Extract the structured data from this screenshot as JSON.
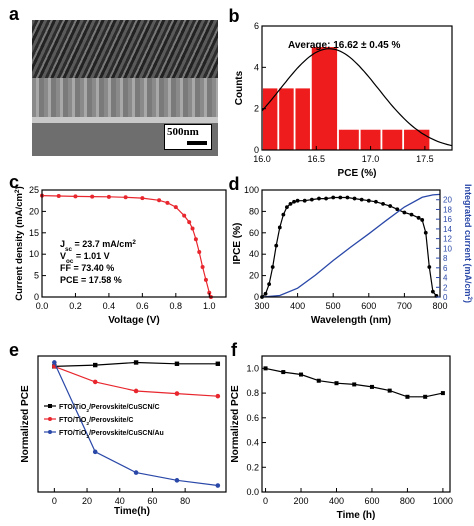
{
  "panel_labels": [
    "a",
    "b",
    "c",
    "d",
    "e",
    "f"
  ],
  "sem": {
    "scale_label": "500nm"
  },
  "chart_data": [
    {
      "panel": "b",
      "type": "bar",
      "bin_edges": [
        16.0,
        16.15,
        16.3,
        16.45,
        16.7,
        16.9,
        17.1,
        17.3,
        17.55
      ],
      "values": [
        3,
        3,
        3,
        5,
        1,
        1,
        1,
        1
      ],
      "fit": {
        "mu": 16.62,
        "sigma": 0.45,
        "peak": 4.9
      },
      "annotation": "Average:  16.62 ± 0.45 %",
      "xlabel": "PCE (%)",
      "ylabel": "Counts",
      "xlim": [
        16.0,
        17.75
      ],
      "ylim": [
        0,
        6
      ],
      "xticks": [
        "16.0",
        "16.5",
        "17.0",
        "17.5"
      ],
      "yticks": [
        "0",
        "2",
        "4",
        "6"
      ],
      "colors": {
        "bar": "#ee1c1c",
        "fit": "#000000"
      }
    },
    {
      "panel": "c",
      "type": "line",
      "x": [
        0,
        0.1,
        0.2,
        0.3,
        0.4,
        0.5,
        0.6,
        0.7,
        0.75,
        0.8,
        0.85,
        0.88,
        0.9,
        0.92,
        0.94,
        0.96,
        0.98,
        1.0,
        1.01
      ],
      "y": [
        23.7,
        23.6,
        23.5,
        23.45,
        23.4,
        23.3,
        23.1,
        22.6,
        22.0,
        21.0,
        19.0,
        17.5,
        16.0,
        13.5,
        10.5,
        7.0,
        4.0,
        1.0,
        0
      ],
      "annotation_lines": [
        {
          "q": "J",
          "sub": "sc",
          "rest": "= 23.7 mA/cm",
          "sup": "2"
        },
        {
          "q": "V",
          "sub": "oc",
          "rest": "= 1.01 V",
          "sup": ""
        },
        {
          "q": "FF",
          "sub": "",
          "rest": "= 73.40 %",
          "sup": ""
        },
        {
          "q": "PCE",
          "sub": "",
          "rest": "= 17.58 %",
          "sup": ""
        }
      ],
      "xlabel": "Voltage (V)",
      "ylabel_main": "Current density (mA/cm",
      "ylabel_sup": "2",
      "ylabel_end": ")",
      "xlim": [
        0,
        1.1
      ],
      "ylim": [
        0,
        25
      ],
      "xticks": [
        "0.0",
        "0.2",
        "0.4",
        "0.6",
        "0.8",
        "1.0"
      ],
      "yticks": [
        "0",
        "5",
        "10",
        "15",
        "20",
        "25"
      ],
      "colors": {
        "line": "#e8262d",
        "marker": "#e8262d"
      }
    },
    {
      "panel": "d",
      "type": "line",
      "series": [
        {
          "name": "IPCE",
          "axis": "left",
          "x": [
            300,
            310,
            320,
            330,
            340,
            350,
            360,
            370,
            380,
            390,
            400,
            420,
            440,
            460,
            480,
            500,
            520,
            540,
            560,
            580,
            600,
            620,
            640,
            660,
            680,
            700,
            720,
            740,
            750,
            760,
            770,
            780,
            790
          ],
          "y": [
            0,
            3,
            12,
            28,
            48,
            65,
            77,
            84,
            87,
            89,
            90,
            90,
            91,
            92,
            92,
            93,
            93,
            93,
            92,
            91,
            90,
            89,
            87,
            85,
            82,
            79,
            77,
            74,
            72,
            60,
            28,
            5,
            1
          ]
        },
        {
          "name": "Integrated current",
          "axis": "right",
          "x": [
            300,
            350,
            400,
            450,
            500,
            550,
            600,
            650,
            700,
            750,
            780,
            800
          ],
          "y": [
            0,
            0.3,
            1.8,
            4.5,
            7.5,
            10.3,
            13.0,
            15.8,
            18.5,
            20.5,
            21.0,
            21.1
          ]
        }
      ],
      "xlabel": "Wavelength (nm)",
      "ylabel_left": "IPCE (%)",
      "ylabel_right": "Integrated current (mA/cm",
      "ylabel_right_sup": "2",
      "ylabel_right_end": ")",
      "xlim": [
        300,
        800
      ],
      "ylim_left": [
        0,
        100
      ],
      "ylim_right": [
        0,
        22
      ],
      "xticks": [
        "300",
        "400",
        "500",
        "600",
        "700",
        "800"
      ],
      "yticks_left": [
        "0",
        "20",
        "40",
        "60",
        "80",
        "100"
      ],
      "yticks_right": [
        "0",
        "2",
        "4",
        "6",
        "8",
        "10",
        "12",
        "14",
        "16",
        "18",
        "20"
      ],
      "colors": {
        "left": "#000000",
        "right": "#2a48a8",
        "right_axis": "#2a48a8"
      }
    },
    {
      "panel": "e",
      "type": "line",
      "series": [
        {
          "name_parts": [
            "FTO/TiO",
            "2",
            "/Perovskite/CuSCN/C"
          ],
          "color": "#000000",
          "marker": "square",
          "x": [
            0,
            25,
            50,
            75,
            100
          ],
          "y": [
            0.97,
            0.98,
            1.0,
            0.99,
            0.99
          ]
        },
        {
          "name_parts": [
            "FTO/TiO",
            "2",
            "/Perovskite/C"
          ],
          "color": "#e8262d",
          "marker": "circle",
          "x": [
            0,
            25,
            50,
            75,
            100
          ],
          "y": [
            0.97,
            0.85,
            0.78,
            0.76,
            0.74
          ]
        },
        {
          "name_parts": [
            "FTO/TiO",
            "2",
            "/Perovskite/CuSCN/Au"
          ],
          "color": "#2a48a8",
          "marker": "circle",
          "x": [
            0,
            25,
            50,
            75,
            100
          ],
          "y": [
            1.0,
            0.31,
            0.15,
            0.09,
            0.05
          ]
        }
      ],
      "xlabel": "Time(h)",
      "ylabel": "Normalized PCE",
      "xlim": [
        -10,
        105
      ],
      "ylim": [
        0,
        1.05
      ],
      "xticks": [
        "0",
        "20",
        "40",
        "60",
        "80"
      ],
      "xtick_vals": [
        0,
        20,
        40,
        60,
        80
      ],
      "legend": "center-left"
    },
    {
      "panel": "f",
      "type": "line",
      "x": [
        0,
        100,
        200,
        300,
        400,
        500,
        600,
        700,
        800,
        900,
        1000
      ],
      "y": [
        1.0,
        0.97,
        0.95,
        0.9,
        0.88,
        0.87,
        0.85,
        0.82,
        0.77,
        0.77,
        0.8
      ],
      "xlabel": "Time (h)",
      "ylabel": "Normalized  PCE",
      "xlim": [
        -20,
        1040
      ],
      "ylim": [
        0,
        1.1
      ],
      "xticks": [
        "0",
        "200",
        "400",
        "600",
        "800",
        "1000"
      ],
      "yticks": [
        "0.0",
        "0.2",
        "0.4",
        "0.6",
        "0.8",
        "1.0"
      ],
      "colors": {
        "line": "#000000"
      }
    }
  ]
}
